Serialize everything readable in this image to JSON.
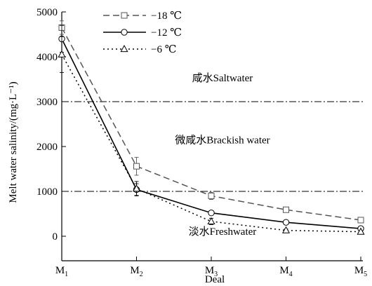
{
  "chart_data": {
    "type": "line",
    "xlabel": "Deal",
    "ylabel": "Melt water salinity/(mg·L⁻¹)",
    "categories": [
      {
        "base": "M",
        "sub": "1"
      },
      {
        "base": "M",
        "sub": "2"
      },
      {
        "base": "M",
        "sub": "3"
      },
      {
        "base": "M",
        "sub": "4"
      },
      {
        "base": "M",
        "sub": "5"
      }
    ],
    "ylim": [
      0,
      5000
    ],
    "yticks": [
      0,
      1000,
      2000,
      3000,
      4000,
      5000
    ],
    "series": [
      {
        "name": "−18 ℃",
        "values": [
          4650,
          1560,
          900,
          590,
          360
        ],
        "errors": [
          150,
          200,
          80,
          40,
          40
        ],
        "marker": "square",
        "line": "dashed",
        "color": "#555555"
      },
      {
        "name": "−12 ℃",
        "values": [
          4400,
          1040,
          520,
          310,
          170
        ],
        "errors": [
          300,
          130,
          50,
          30,
          40
        ],
        "marker": "circle",
        "line": "solid",
        "color": "#000000"
      },
      {
        "name": "−6 ℃",
        "values": [
          4050,
          1060,
          330,
          130,
          100
        ],
        "errors": [
          400,
          160,
          70,
          30,
          20
        ],
        "marker": "triangle",
        "line": "dotted",
        "color": "#000000"
      }
    ],
    "thresholds": [
      1000,
      3000
    ],
    "annotations": [
      {
        "text": "咸水Saltwater",
        "x": 2.15,
        "y": 3450
      },
      {
        "text": "微咸水Brackish water",
        "x": 2.15,
        "y": 2070
      },
      {
        "text": "淡水Freshwater",
        "x": 2.15,
        "y": 30
      }
    ],
    "legend": "top-left",
    "grid": false
  }
}
